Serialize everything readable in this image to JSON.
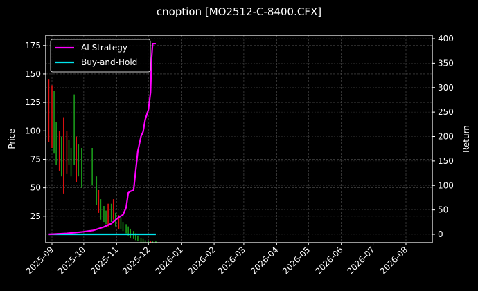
{
  "title": "cnoption [MO2512-C-8400.CFX]",
  "chart_data": {
    "type": "line",
    "title": "cnoption [MO2512-C-8400.CFX]",
    "xlabel": "",
    "ylabel_left": "Price",
    "ylabel_right": "Return",
    "x_tick_labels": [
      "2025-09",
      "2025-10",
      "2025-11",
      "2025-12",
      "2026-01",
      "2026-02",
      "2026-03",
      "2026-04",
      "2026-05",
      "2026-06",
      "2026-07",
      "2026-08"
    ],
    "y_left_ticks": [
      25,
      50,
      75,
      100,
      125,
      150,
      175
    ],
    "y_left_range": [
      2,
      183
    ],
    "y_right_ticks": [
      0,
      50,
      100,
      150,
      200,
      250,
      300,
      350,
      400
    ],
    "y_right_range": [
      -17,
      407
    ],
    "grid": true,
    "legend_position": "upper left",
    "legend": [
      "AI Strategy",
      "Buy-and-Hold"
    ],
    "colors": {
      "ai_strategy": "#ff00ff",
      "buy_and_hold": "#00e5ee",
      "up_candle": "#1a9a1a",
      "down_candle": "#e01010",
      "grid": "#555555",
      "frame": "#ffffff"
    },
    "series": [
      {
        "name": "AI Strategy",
        "axis": "right",
        "x": [
          "2025-08-29",
          "2025-09-15",
          "2025-09-30",
          "2025-10-10",
          "2025-10-20",
          "2025-10-27",
          "2025-11-03",
          "2025-11-07",
          "2025-11-10",
          "2025-11-12",
          "2025-11-14",
          "2025-11-17",
          "2025-11-19",
          "2025-11-21",
          "2025-11-24",
          "2025-11-26",
          "2025-11-28",
          "2025-12-01",
          "2025-12-03",
          "2025-12-04",
          "2025-12-05",
          "2025-12-08"
        ],
        "values": [
          0,
          2,
          5,
          8,
          15,
          22,
          35,
          40,
          55,
          85,
          88,
          90,
          130,
          170,
          200,
          210,
          235,
          255,
          290,
          360,
          390,
          390
        ]
      },
      {
        "name": "Buy-and-Hold",
        "axis": "right",
        "x": [
          "2025-08-29",
          "2025-12-08"
        ],
        "values": [
          0,
          0
        ]
      },
      {
        "name": "Price (candles)",
        "axis": "left",
        "type": "candlestick",
        "x": [
          "2025-08-29",
          "2025-09-01",
          "2025-09-03",
          "2025-09-05",
          "2025-09-08",
          "2025-09-10",
          "2025-09-12",
          "2025-09-15",
          "2025-09-17",
          "2025-09-19",
          "2025-09-22",
          "2025-09-24",
          "2025-09-26",
          "2025-09-29",
          "2025-10-09",
          "2025-10-13",
          "2025-10-15",
          "2025-10-17",
          "2025-10-20",
          "2025-10-22",
          "2025-10-24",
          "2025-10-27",
          "2025-10-29",
          "2025-10-31",
          "2025-11-03",
          "2025-11-05",
          "2025-11-07",
          "2025-11-10",
          "2025-11-12",
          "2025-11-14",
          "2025-11-17",
          "2025-11-19",
          "2025-11-21",
          "2025-11-24",
          "2025-11-26",
          "2025-11-28",
          "2025-12-01",
          "2025-12-03",
          "2025-12-05",
          "2025-12-08"
        ],
        "high": [
          145,
          140,
          135,
          108,
          100,
          95,
          112,
          100,
          92,
          85,
          132,
          95,
          88,
          85,
          85,
          60,
          48,
          40,
          34,
          30,
          36,
          36,
          40,
          28,
          26,
          24,
          20,
          18,
          16,
          14,
          12,
          10,
          8,
          6,
          5,
          4,
          3,
          3,
          3,
          3
        ],
        "low": [
          90,
          85,
          80,
          70,
          65,
          60,
          45,
          62,
          70,
          60,
          70,
          55,
          60,
          50,
          52,
          35,
          28,
          22,
          20,
          18,
          16,
          20,
          22,
          16,
          14,
          14,
          12,
          10,
          8,
          6,
          5,
          4,
          3,
          2,
          2,
          2,
          2,
          2,
          2,
          2
        ],
        "dir": [
          "down",
          "down",
          "up",
          "up",
          "down",
          "up",
          "down",
          "down",
          "up",
          "up",
          "up",
          "down",
          "up",
          "up",
          "up",
          "up",
          "down",
          "up",
          "up",
          "up",
          "down",
          "up",
          "down",
          "up",
          "down",
          "up",
          "up",
          "up",
          "up",
          "up",
          "up",
          "up",
          "up",
          "up",
          "up",
          "up",
          "up",
          "down",
          "up",
          "up"
        ]
      }
    ]
  }
}
